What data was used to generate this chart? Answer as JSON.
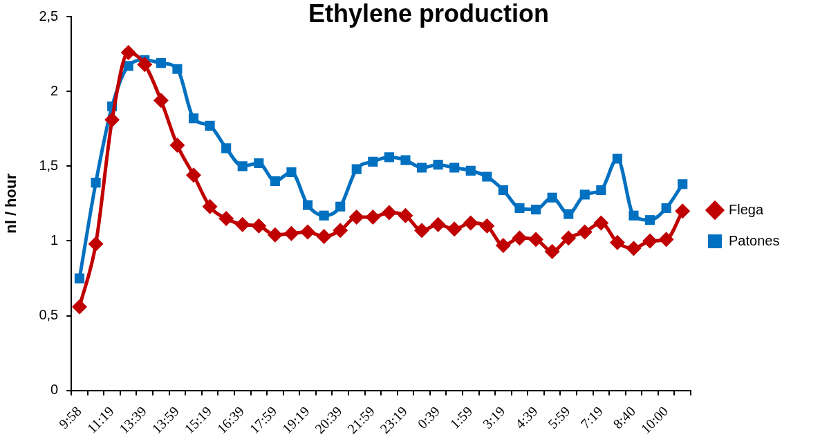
{
  "chart_data": {
    "type": "line",
    "title": "Ethylene production",
    "ylabel": "nl / hour",
    "categories": [
      "9:58",
      null,
      "11:19",
      null,
      "13:39",
      null,
      "13:59",
      null,
      "15:19",
      null,
      "16:39",
      null,
      "17:59",
      null,
      "19:19",
      null,
      "20:39",
      null,
      "21:59",
      null,
      "23:19",
      null,
      "0:39",
      null,
      "1:59",
      null,
      "3:19",
      null,
      "4:39",
      null,
      "5:59",
      null,
      "7:19",
      null,
      "8:40",
      null,
      "10:00",
      null
    ],
    "series": [
      {
        "name": "Flega",
        "color": "#c00000",
        "marker": "diamond",
        "values": [
          0.56,
          0.98,
          1.81,
          2.26,
          2.18,
          1.94,
          1.64,
          1.44,
          1.23,
          1.15,
          1.11,
          1.1,
          1.04,
          1.05,
          1.06,
          1.03,
          1.07,
          1.16,
          1.16,
          1.19,
          1.17,
          1.07,
          1.11,
          1.08,
          1.12,
          1.1,
          0.97,
          1.02,
          1.01,
          0.93,
          1.02,
          1.06,
          1.12,
          0.99,
          0.95,
          1.0,
          1.01,
          1.2
        ]
      },
      {
        "name": "Patones",
        "color": "#0070c0",
        "marker": "square",
        "values": [
          0.75,
          1.39,
          1.9,
          2.17,
          2.21,
          2.19,
          2.15,
          1.82,
          1.77,
          1.62,
          1.5,
          1.52,
          1.4,
          1.46,
          1.24,
          1.17,
          1.23,
          1.48,
          1.53,
          1.56,
          1.54,
          1.49,
          1.51,
          1.49,
          1.47,
          1.43,
          1.34,
          1.22,
          1.21,
          1.29,
          1.18,
          1.31,
          1.34,
          1.55,
          1.17,
          1.14,
          1.22,
          1.38
        ]
      }
    ],
    "ylim": [
      0,
      2.5
    ],
    "yticks": [
      0,
      {
        "value": 0.5,
        "label": "0,5"
      },
      1,
      {
        "value": 1.5,
        "label": "1,5"
      },
      2,
      {
        "value": 2.5,
        "label": "2,5"
      }
    ],
    "grid": false,
    "legend": "right",
    "line_style": "solid"
  }
}
